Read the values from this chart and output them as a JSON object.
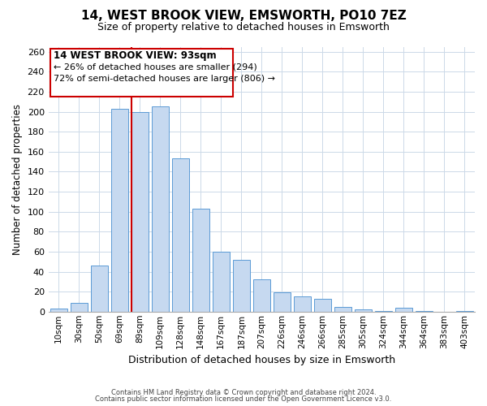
{
  "title": "14, WEST BROOK VIEW, EMSWORTH, PO10 7EZ",
  "subtitle": "Size of property relative to detached houses in Emsworth",
  "xlabel": "Distribution of detached houses by size in Emsworth",
  "ylabel": "Number of detached properties",
  "bar_labels": [
    "10sqm",
    "30sqm",
    "50sqm",
    "69sqm",
    "89sqm",
    "109sqm",
    "128sqm",
    "148sqm",
    "167sqm",
    "187sqm",
    "207sqm",
    "226sqm",
    "246sqm",
    "266sqm",
    "285sqm",
    "305sqm",
    "324sqm",
    "344sqm",
    "364sqm",
    "383sqm",
    "403sqm"
  ],
  "bar_values": [
    3,
    9,
    46,
    203,
    200,
    205,
    153,
    103,
    60,
    52,
    32,
    19,
    15,
    13,
    5,
    2,
    1,
    4,
    1,
    0,
    1
  ],
  "bar_color": "#c6d9f0",
  "bar_edge_color": "#5b9bd5",
  "red_line_bar_index": 4,
  "ylim": [
    0,
    265
  ],
  "yticks": [
    0,
    20,
    40,
    60,
    80,
    100,
    120,
    140,
    160,
    180,
    200,
    220,
    240,
    260
  ],
  "annotation_title": "14 WEST BROOK VIEW: 93sqm",
  "annotation_line1": "← 26% of detached houses are smaller (294)",
  "annotation_line2": "72% of semi-detached houses are larger (806) →",
  "footer1": "Contains HM Land Registry data © Crown copyright and database right 2024.",
  "footer2": "Contains public sector information licensed under the Open Government Licence v3.0.",
  "background_color": "#ffffff",
  "grid_color": "#ccd9e8"
}
